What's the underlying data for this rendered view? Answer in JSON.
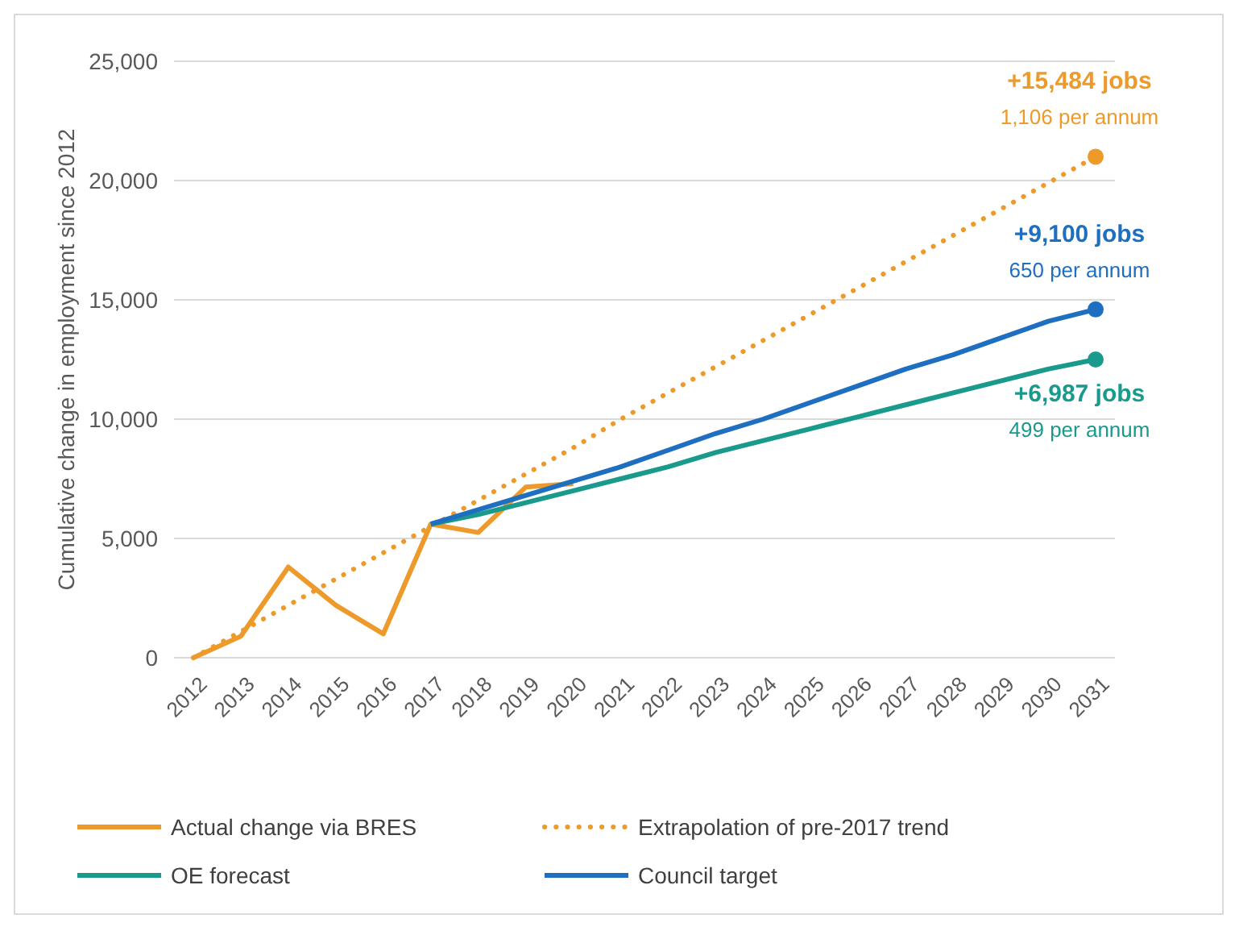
{
  "chart_data": {
    "type": "line",
    "ylabel": "Cumulative change in employment since 2012",
    "categories": [
      "2012",
      "2013",
      "2014",
      "2015",
      "2016",
      "2017",
      "2018",
      "2019",
      "2020",
      "2021",
      "2022",
      "2023",
      "2024",
      "2025",
      "2026",
      "2027",
      "2028",
      "2029",
      "2030",
      "2031"
    ],
    "series": [
      {
        "name": "Actual change via BRES",
        "color": "#ed9a2a",
        "line_style": "solid",
        "values": [
          0,
          900,
          3800,
          2200,
          1000,
          5600,
          5250,
          7150,
          7300,
          null,
          null,
          null,
          null,
          null,
          null,
          null,
          null,
          null,
          null,
          null
        ]
      },
      {
        "name": "Extrapolation of pre-2017 trend",
        "color": "#ed9a2a",
        "line_style": "dotted",
        "values": [
          0,
          1100,
          2200,
          3300,
          4400,
          5500,
          6600,
          7700,
          8800,
          10000,
          11100,
          12200,
          13300,
          14400,
          15500,
          16600,
          17700,
          18800,
          19900,
          21000
        ]
      },
      {
        "name": "OE forecast",
        "color": "#1a9a8c",
        "line_style": "solid",
        "values": [
          null,
          null,
          null,
          null,
          null,
          5600,
          6000,
          6500,
          7000,
          7500,
          8000,
          8600,
          9100,
          9600,
          10100,
          10600,
          11100,
          11600,
          12100,
          12500
        ]
      },
      {
        "name": "Council target",
        "color": "#1f6fc0",
        "line_style": "solid",
        "values": [
          null,
          null,
          null,
          null,
          null,
          5600,
          6200,
          6800,
          7400,
          8000,
          8700,
          9400,
          10000,
          10700,
          11400,
          12100,
          12700,
          13400,
          14100,
          14600
        ]
      }
    ],
    "annotations": [
      {
        "text": "+15,484 jobs\n1,106 per annum",
        "x": "2031",
        "y": 21000
      },
      {
        "text": "+9,100 jobs\n650 per annum",
        "x": "2031",
        "y": 14600
      },
      {
        "text": "+6,987 jobs\n499 per annum",
        "x": "2031",
        "y": 12500
      }
    ],
    "ylim": [
      0,
      25000
    ],
    "yticks": [
      {
        "value": 0,
        "label": "0"
      },
      {
        "value": 5000,
        "label": "5,000"
      },
      {
        "value": 10000,
        "label": "10,000"
      },
      {
        "value": 15000,
        "label": "15,000"
      },
      {
        "value": 20000,
        "label": "20,000"
      },
      {
        "value": 25000,
        "label": "25,000"
      }
    ],
    "grid": "y",
    "legend": "bottom"
  }
}
